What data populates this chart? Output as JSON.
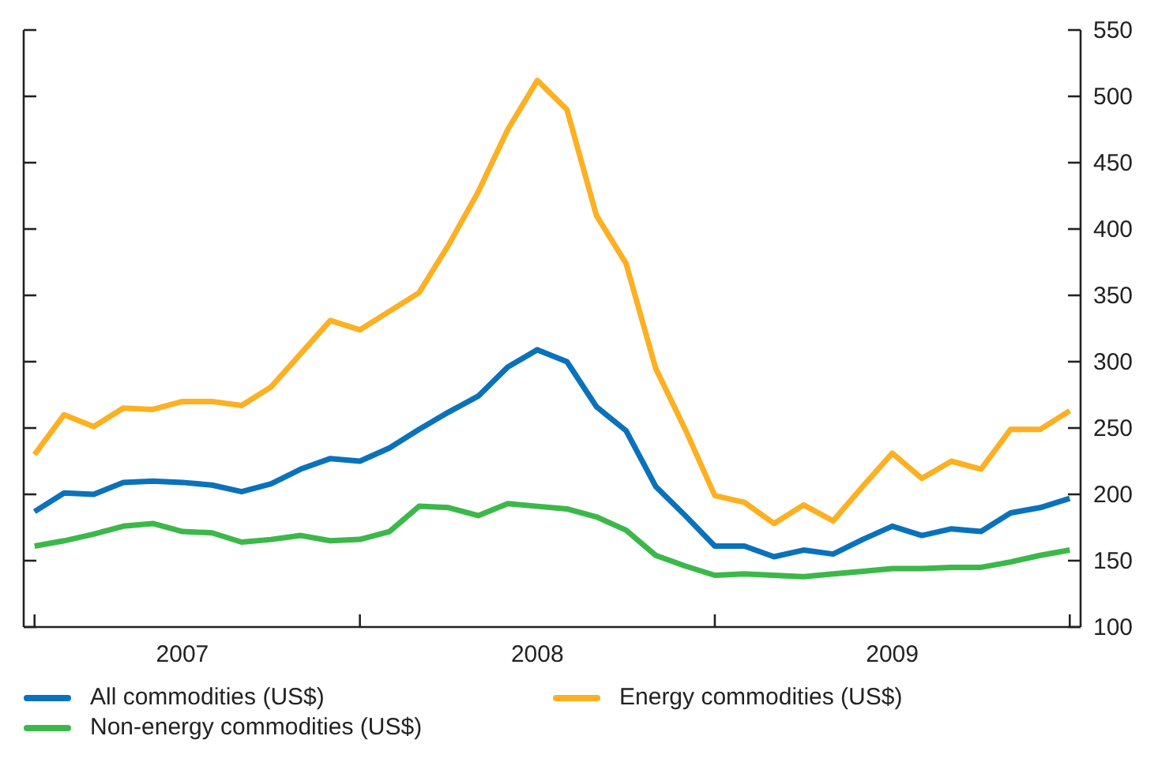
{
  "chart_data": {
    "type": "line",
    "x": [
      "2007-02",
      "2007-03",
      "2007-04",
      "2007-05",
      "2007-06",
      "2007-07",
      "2007-08",
      "2007-09",
      "2007-10",
      "2007-11",
      "2007-12",
      "2008-01",
      "2008-02",
      "2008-03",
      "2008-04",
      "2008-05",
      "2008-06",
      "2008-07",
      "2008-08",
      "2008-09",
      "2008-10",
      "2008-11",
      "2008-12",
      "2009-01",
      "2009-02",
      "2009-03",
      "2009-04",
      "2009-05",
      "2009-06",
      "2009-07",
      "2009-08",
      "2009-09",
      "2009-10",
      "2009-11",
      "2009-12",
      "2010-01"
    ],
    "series": [
      {
        "name": "All commodities (US$)",
        "color": "#0a72ba",
        "values": [
          187,
          201,
          200,
          209,
          210,
          209,
          207,
          202,
          208,
          219,
          227,
          225,
          235,
          249,
          262,
          274,
          296,
          309,
          300,
          266,
          248,
          206,
          184,
          161,
          161,
          153,
          158,
          155,
          166,
          176,
          169,
          174,
          172,
          186,
          190,
          197
        ]
      },
      {
        "name": "Energy commodities (US$)",
        "color": "#fcb022",
        "values": [
          230,
          260,
          251,
          265,
          264,
          270,
          270,
          267,
          281,
          306,
          331,
          324,
          338,
          352,
          388,
          428,
          475,
          512,
          490,
          410,
          374,
          295,
          249,
          199,
          194,
          178,
          192,
          180,
          206,
          231,
          212,
          225,
          219,
          249,
          249,
          263
        ]
      },
      {
        "name": "Non-energy commodities (US$)",
        "color": "#3cb84a",
        "values": [
          161,
          165,
          170,
          176,
          178,
          172,
          171,
          164,
          166,
          169,
          165,
          166,
          172,
          191,
          190,
          184,
          193,
          191,
          189,
          183,
          173,
          154,
          146,
          139,
          140,
          139,
          138,
          140,
          142,
          144,
          144,
          145,
          145,
          149,
          154,
          158
        ]
      }
    ],
    "xlim": [
      "2007-01-20",
      "2010-01-12"
    ],
    "xticks": [
      {
        "value": "2007-02",
        "label": null
      },
      {
        "value": "2008-01",
        "label": null
      },
      {
        "value": "2009-01",
        "label": null
      },
      {
        "value": "2010-01",
        "label": null
      },
      {
        "value": "2007-07",
        "label": "2007"
      },
      {
        "value": "2008-07",
        "label": "2008"
      },
      {
        "value": "2009-07",
        "label": "2009"
      }
    ],
    "ylim": [
      100,
      550
    ],
    "yticks": [
      100,
      150,
      200,
      250,
      300,
      350,
      400,
      450,
      500,
      550
    ],
    "grid": false,
    "legend": "bottom",
    "marker": "none",
    "line_style": "solid"
  }
}
